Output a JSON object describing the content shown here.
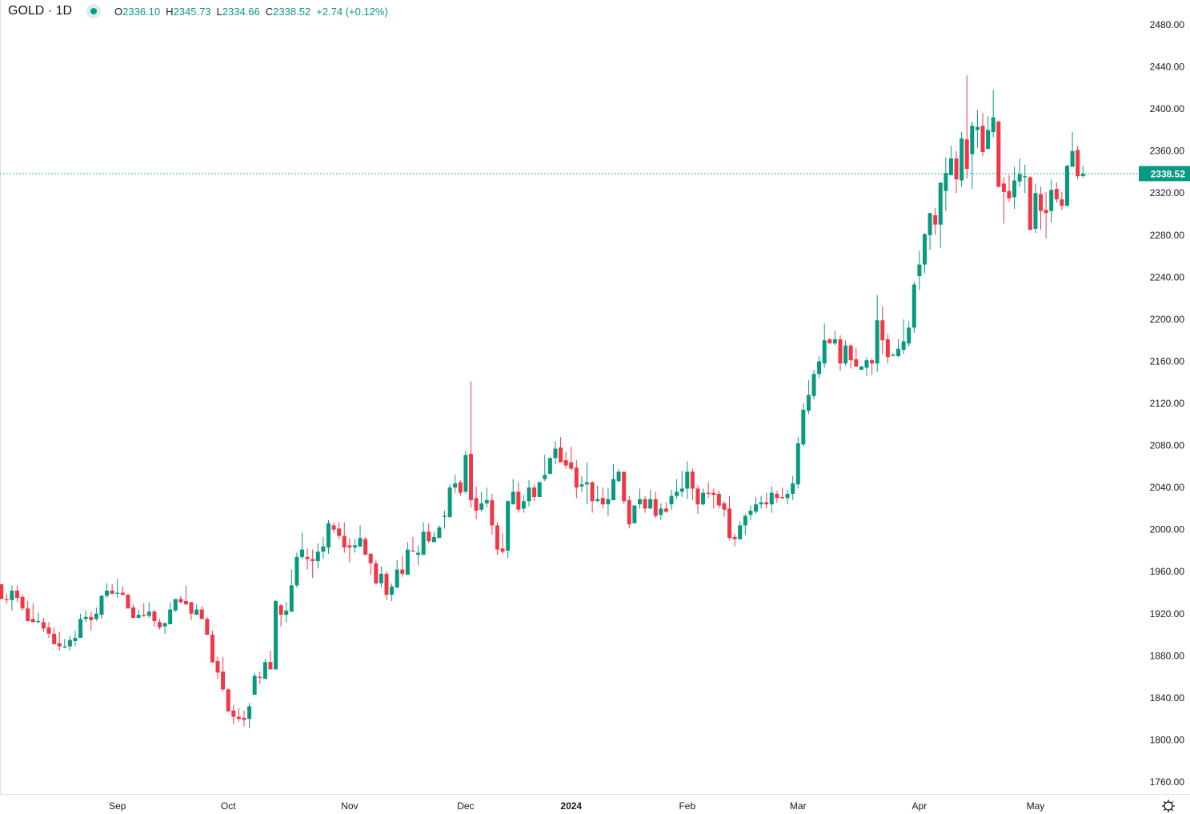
{
  "header": {
    "symbol": "GOLD · 1D",
    "open_label": "O",
    "open": "2336.10",
    "high_label": "H",
    "high": "2345.73",
    "low_label": "L",
    "low": "2334.66",
    "close_label": "C",
    "close": "2338.52",
    "change": "+2.74 (+0.12%)",
    "status_icon": "market-open-dot-icon"
  },
  "colors": {
    "up": "#089981",
    "down": "#F23645",
    "text": "#131722",
    "axis_line": "#e0e3eb"
  },
  "settings_icon": "gear-icon",
  "chart_data": {
    "type": "candlestick",
    "title": "GOLD · 1D",
    "ylim": [
      1740,
      2500
    ],
    "y_ticks": [
      "1760.00",
      "1800.00",
      "1840.00",
      "1880.00",
      "1920.00",
      "1960.00",
      "2000.00",
      "2040.00",
      "2080.00",
      "2120.00",
      "2160.00",
      "2200.00",
      "2240.00",
      "2280.00",
      "2320.00",
      "2360.00",
      "2400.00",
      "2440.00",
      "2480.00"
    ],
    "x_ticks": [
      {
        "label": "Sep",
        "candle": 22
      },
      {
        "label": "Oct",
        "candle": 43
      },
      {
        "label": "Nov",
        "candle": 66
      },
      {
        "label": "Dec",
        "candle": 88
      },
      {
        "label": "2024",
        "candle": 108,
        "bold": true
      },
      {
        "label": "Feb",
        "candle": 130
      },
      {
        "label": "Mar",
        "candle": 151
      },
      {
        "label": "Apr",
        "candle": 174
      },
      {
        "label": "May",
        "candle": 196
      }
    ],
    "last_price": "2338.52",
    "grid": false,
    "ohlc": [
      [
        1948,
        1948,
        1934,
        1934
      ],
      [
        1934,
        1939,
        1929,
        1933
      ],
      [
        1933,
        1947,
        1923,
        1942
      ],
      [
        1942,
        1947,
        1931,
        1935
      ],
      [
        1936,
        1938,
        1923,
        1925
      ],
      [
        1925,
        1932,
        1913,
        1913
      ],
      [
        1915,
        1930,
        1912,
        1912
      ],
      [
        1912,
        1921,
        1911,
        1913
      ],
      [
        1912,
        1916,
        1903,
        1906
      ],
      [
        1907,
        1912,
        1897,
        1901
      ],
      [
        1901,
        1907,
        1891,
        1891
      ],
      [
        1892,
        1903,
        1885,
        1889
      ],
      [
        1888,
        1896,
        1887,
        1889
      ],
      [
        1889,
        1899,
        1885,
        1895
      ],
      [
        1894,
        1904,
        1889,
        1897
      ],
      [
        1897,
        1920,
        1897,
        1915
      ],
      [
        1915,
        1923,
        1912,
        1917
      ],
      [
        1917,
        1922,
        1904,
        1914
      ],
      [
        1915,
        1926,
        1913,
        1920
      ],
      [
        1919,
        1938,
        1915,
        1937
      ],
      [
        1937,
        1949,
        1935,
        1942
      ],
      [
        1942,
        1948,
        1939,
        1939
      ],
      [
        1939,
        1953,
        1935,
        1940
      ],
      [
        1940,
        1946,
        1937,
        1938
      ],
      [
        1938,
        1939,
        1925,
        1925
      ],
      [
        1926,
        1929,
        1916,
        1916
      ],
      [
        1916,
        1924,
        1916,
        1919
      ],
      [
        1919,
        1930,
        1917,
        1918
      ],
      [
        1918,
        1931,
        1916,
        1922
      ],
      [
        1922,
        1924,
        1908,
        1913
      ],
      [
        1912,
        1915,
        1905,
        1907
      ],
      [
        1908,
        1912,
        1901,
        1911
      ],
      [
        1910,
        1931,
        1910,
        1924
      ],
      [
        1923,
        1934,
        1922,
        1934
      ],
      [
        1934,
        1937,
        1930,
        1931
      ],
      [
        1932,
        1947,
        1928,
        1929
      ],
      [
        1931,
        1931,
        1914,
        1920
      ],
      [
        1919,
        1929,
        1919,
        1924
      ],
      [
        1924,
        1927,
        1915,
        1915
      ],
      [
        1915,
        1917,
        1900,
        1900
      ],
      [
        1900,
        1904,
        1873,
        1874
      ],
      [
        1875,
        1879,
        1858,
        1864
      ],
      [
        1865,
        1879,
        1846,
        1848
      ],
      [
        1848,
        1849,
        1827,
        1827
      ],
      [
        1828,
        1833,
        1815,
        1822
      ],
      [
        1822,
        1830,
        1817,
        1820
      ],
      [
        1821,
        1828,
        1813,
        1819
      ],
      [
        1820,
        1835,
        1811,
        1832
      ],
      [
        1843,
        1864,
        1843,
        1861
      ],
      [
        1860,
        1865,
        1853,
        1859
      ],
      [
        1858,
        1877,
        1858,
        1874
      ],
      [
        1874,
        1885,
        1867,
        1867
      ],
      [
        1867,
        1933,
        1867,
        1932
      ],
      [
        1928,
        1929,
        1908,
        1919
      ],
      [
        1919,
        1931,
        1912,
        1923
      ],
      [
        1922,
        1962,
        1922,
        1947
      ],
      [
        1947,
        1978,
        1945,
        1974
      ],
      [
        1974,
        1997,
        1972,
        1981
      ],
      [
        1974,
        1982,
        1962,
        1972
      ],
      [
        1972,
        1981,
        1954,
        1970
      ],
      [
        1970,
        1987,
        1963,
        1979
      ],
      [
        1979,
        1993,
        1972,
        1984
      ],
      [
        1983,
        2009,
        1977,
        2006
      ],
      [
        2004,
        2007,
        1997,
        2000
      ],
      [
        2001,
        2007,
        1991,
        1994
      ],
      [
        1994,
        2007,
        1978,
        1983
      ],
      [
        1985,
        1992,
        1969,
        1983
      ],
      [
        1983,
        1991,
        1978,
        1985
      ],
      [
        1984,
        2004,
        1983,
        1992
      ],
      [
        1991,
        1993,
        1976,
        1976
      ],
      [
        1977,
        1978,
        1957,
        1968
      ],
      [
        1968,
        1971,
        1948,
        1949
      ],
      [
        1949,
        1965,
        1945,
        1958
      ],
      [
        1958,
        1960,
        1933,
        1938
      ],
      [
        1938,
        1949,
        1932,
        1946
      ],
      [
        1945,
        1971,
        1944,
        1962
      ],
      [
        1962,
        1975,
        1955,
        1958
      ],
      [
        1957,
        1988,
        1957,
        1981
      ],
      [
        1980,
        1993,
        1979,
        1979
      ],
      [
        1976,
        1985,
        1966,
        1978
      ],
      [
        1976,
        2007,
        1976,
        1998
      ],
      [
        1998,
        2006,
        1987,
        1989
      ],
      [
        1988,
        1998,
        1988,
        1993
      ],
      [
        1992,
        2004,
        1992,
        2002
      ],
      [
        2012,
        2018,
        2001,
        2013
      ],
      [
        2012,
        2043,
        2011,
        2040
      ],
      [
        2040,
        2052,
        2035,
        2044
      ],
      [
        2045,
        2047,
        2032,
        2035
      ],
      [
        2036,
        2075,
        2034,
        2071
      ],
      [
        2072,
        2141,
        2021,
        2028
      ],
      [
        2030,
        2041,
        2010,
        2018
      ],
      [
        2019,
        2036,
        2017,
        2025
      ],
      [
        2025,
        2040,
        2021,
        2028
      ],
      [
        2028,
        2034,
        1995,
        2004
      ],
      [
        2004,
        2007,
        1976,
        1981
      ],
      [
        1982,
        1997,
        1977,
        1979
      ],
      [
        1980,
        2028,
        1973,
        2027
      ],
      [
        2024,
        2048,
        2024,
        2036
      ],
      [
        2036,
        2045,
        2016,
        2019
      ],
      [
        2020,
        2033,
        2016,
        2027
      ],
      [
        2027,
        2047,
        2022,
        2040
      ],
      [
        2040,
        2043,
        2027,
        2031
      ],
      [
        2031,
        2046,
        2031,
        2045
      ],
      [
        2048,
        2071,
        2046,
        2052
      ],
      [
        2053,
        2069,
        2053,
        2068
      ],
      [
        2068,
        2084,
        2062,
        2077
      ],
      [
        2078,
        2088,
        2064,
        2064
      ],
      [
        2066,
        2074,
        2058,
        2061
      ],
      [
        2064,
        2079,
        2056,
        2058
      ],
      [
        2059,
        2066,
        2030,
        2040
      ],
      [
        2041,
        2051,
        2036,
        2043
      ],
      [
        2043,
        2064,
        2024,
        2045
      ],
      [
        2045,
        2046,
        2016,
        2027
      ],
      [
        2027,
        2042,
        2026,
        2029
      ],
      [
        2030,
        2040,
        2020,
        2024
      ],
      [
        2024,
        2040,
        2013,
        2029
      ],
      [
        2028,
        2062,
        2028,
        2048
      ],
      [
        2046,
        2058,
        2045,
        2055
      ],
      [
        2055,
        2055,
        2024,
        2027
      ],
      [
        2028,
        2032,
        2001,
        2005
      ],
      [
        2006,
        2023,
        2006,
        2023
      ],
      [
        2024,
        2039,
        2020,
        2029
      ],
      [
        2029,
        2032,
        2016,
        2020
      ],
      [
        2020,
        2038,
        2020,
        2029
      ],
      [
        2029,
        2036,
        2011,
        2013
      ],
      [
        2014,
        2025,
        2009,
        2020
      ],
      [
        2020,
        2026,
        2016,
        2017
      ],
      [
        2024,
        2038,
        2019,
        2032
      ],
      [
        2032,
        2048,
        2029,
        2036
      ],
      [
        2036,
        2056,
        2031,
        2039
      ],
      [
        2039,
        2065,
        2029,
        2055
      ],
      [
        2055,
        2058,
        2028,
        2039
      ],
      [
        2039,
        2042,
        2015,
        2024
      ],
      [
        2024,
        2039,
        2023,
        2035
      ],
      [
        2035,
        2045,
        2030,
        2034
      ],
      [
        2035,
        2039,
        2020,
        2033
      ],
      [
        2034,
        2037,
        2020,
        2023
      ],
      [
        2025,
        2027,
        2012,
        2019
      ],
      [
        2020,
        2032,
        1990,
        1992
      ],
      [
        1993,
        1996,
        1984,
        1991
      ],
      [
        1991,
        2008,
        1990,
        2004
      ],
      [
        2004,
        2015,
        1995,
        2013
      ],
      [
        2014,
        2023,
        2009,
        2018
      ],
      [
        2017,
        2031,
        2015,
        2024
      ],
      [
        2024,
        2032,
        2020,
        2026
      ],
      [
        2026,
        2035,
        2020,
        2024
      ],
      [
        2024,
        2041,
        2016,
        2035
      ],
      [
        2034,
        2037,
        2025,
        2030
      ],
      [
        2031,
        2040,
        2029,
        2030
      ],
      [
        2030,
        2038,
        2024,
        2034
      ],
      [
        2034,
        2051,
        2028,
        2044
      ],
      [
        2043,
        2088,
        2039,
        2082
      ],
      [
        2081,
        2120,
        2079,
        2114
      ],
      [
        2113,
        2142,
        2110,
        2128
      ],
      [
        2127,
        2152,
        2124,
        2148
      ],
      [
        2148,
        2165,
        2144,
        2160
      ],
      [
        2158,
        2196,
        2154,
        2180
      ],
      [
        2181,
        2182,
        2177,
        2177
      ],
      [
        2177,
        2189,
        2175,
        2181
      ],
      [
        2181,
        2185,
        2151,
        2158
      ],
      [
        2158,
        2180,
        2156,
        2175
      ],
      [
        2175,
        2177,
        2153,
        2161
      ],
      [
        2162,
        2173,
        2155,
        2155
      ],
      [
        2152,
        2156,
        2152,
        2155
      ],
      [
        2154,
        2164,
        2146,
        2161
      ],
      [
        2161,
        2163,
        2147,
        2158
      ],
      [
        2158,
        2223,
        2150,
        2199
      ],
      [
        2199,
        2212,
        2167,
        2180
      ],
      [
        2181,
        2186,
        2158,
        2164
      ],
      [
        2165,
        2168,
        2165,
        2166
      ],
      [
        2165,
        2181,
        2164,
        2172
      ],
      [
        2171,
        2200,
        2167,
        2179
      ],
      [
        2177,
        2198,
        2174,
        2192
      ],
      [
        2192,
        2236,
        2187,
        2233
      ],
      [
        2241,
        2265,
        2228,
        2252
      ],
      [
        2252,
        2282,
        2244,
        2281
      ],
      [
        2280,
        2301,
        2266,
        2301
      ],
      [
        2299,
        2306,
        2280,
        2290
      ],
      [
        2290,
        2330,
        2268,
        2330
      ],
      [
        2322,
        2354,
        2303,
        2339
      ],
      [
        2337,
        2365,
        2337,
        2353
      ],
      [
        2353,
        2360,
        2320,
        2333
      ],
      [
        2332,
        2378,
        2326,
        2372
      ],
      [
        2371,
        2432,
        2334,
        2343
      ],
      [
        2357,
        2388,
        2324,
        2384
      ],
      [
        2380,
        2399,
        2363,
        2383
      ],
      [
        2384,
        2396,
        2355,
        2359
      ],
      [
        2362,
        2393,
        2362,
        2380
      ],
      [
        2378,
        2418,
        2373,
        2392
      ],
      [
        2388,
        2389,
        2325,
        2326
      ],
      [
        2329,
        2335,
        2291,
        2321
      ],
      [
        2322,
        2337,
        2312,
        2315
      ],
      [
        2316,
        2345,
        2305,
        2332
      ],
      [
        2331,
        2353,
        2326,
        2338
      ],
      [
        2335,
        2347,
        2320,
        2336
      ],
      [
        2335,
        2336,
        2285,
        2285
      ],
      [
        2286,
        2329,
        2282,
        2320
      ],
      [
        2319,
        2326,
        2285,
        2303
      ],
      [
        2304,
        2321,
        2277,
        2301
      ],
      [
        2303,
        2333,
        2292,
        2323
      ],
      [
        2324,
        2330,
        2311,
        2314
      ],
      [
        2314,
        2321,
        2304,
        2308
      ],
      [
        2308,
        2347,
        2307,
        2346
      ],
      [
        2345,
        2378,
        2345,
        2360
      ],
      [
        2361,
        2365,
        2333,
        2336
      ],
      [
        2336.1,
        2345.73,
        2334.66,
        2338.52
      ]
    ]
  }
}
